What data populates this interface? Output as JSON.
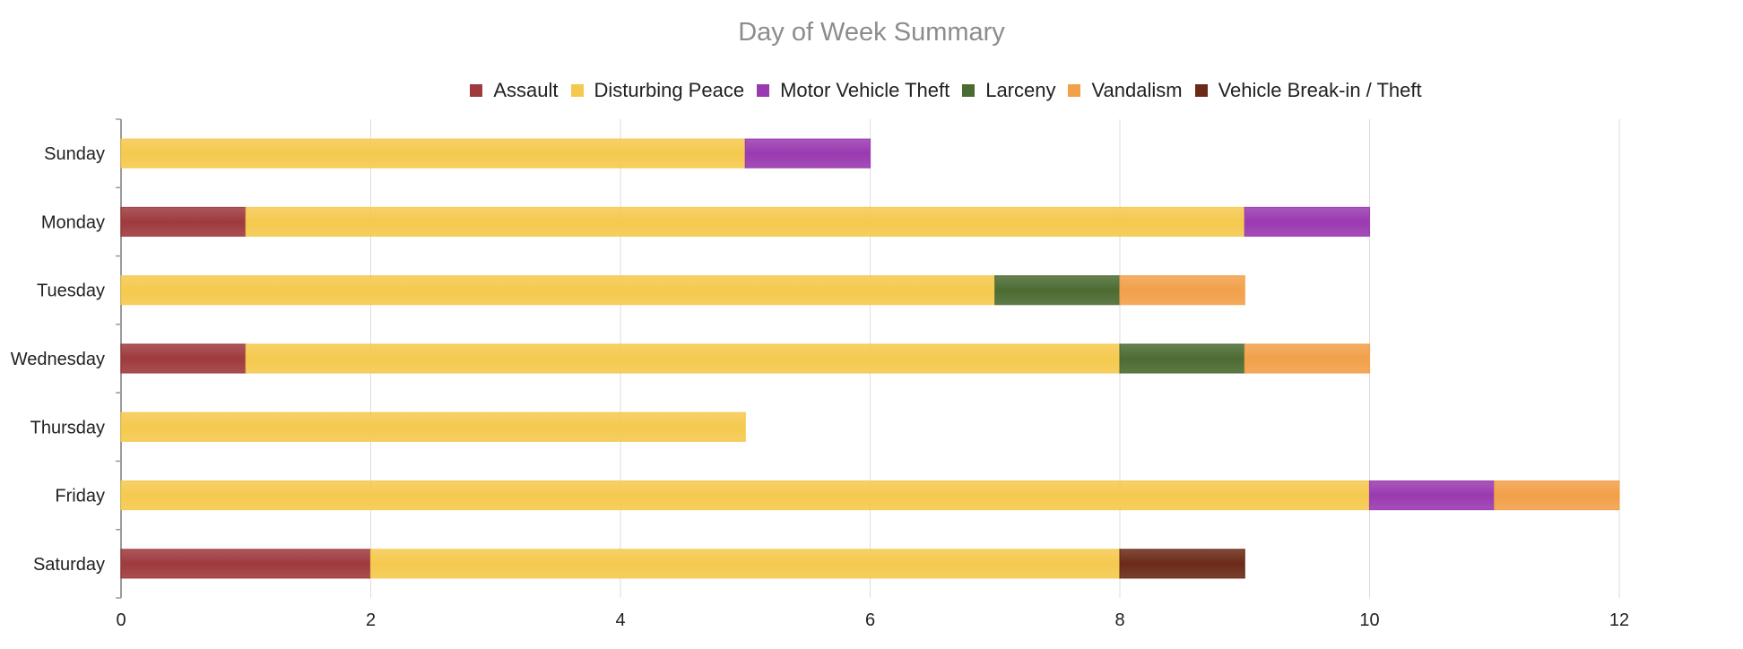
{
  "chart_data": {
    "type": "bar",
    "orientation": "horizontal",
    "stacked": true,
    "title": "Day of Week Summary",
    "categories": [
      "Sunday",
      "Monday",
      "Tuesday",
      "Wednesday",
      "Thursday",
      "Friday",
      "Saturday"
    ],
    "series": [
      {
        "name": "Assault",
        "color": "#9e3a3e",
        "values": [
          0,
          1,
          0,
          1,
          0,
          0,
          2
        ]
      },
      {
        "name": "Disturbing Peace",
        "color": "#f5c94e",
        "values": [
          5,
          8,
          7,
          7,
          5,
          10,
          6
        ]
      },
      {
        "name": "Motor Vehicle Theft",
        "color": "#9a3ab0",
        "values": [
          1,
          1,
          0,
          0,
          0,
          1,
          0
        ]
      },
      {
        "name": "Larceny",
        "color": "#4c6b32",
        "values": [
          0,
          0,
          1,
          1,
          0,
          0,
          0
        ]
      },
      {
        "name": "Vandalism",
        "color": "#f2a04a",
        "values": [
          0,
          0,
          1,
          1,
          0,
          1,
          0
        ]
      },
      {
        "name": "Vehicle Break-in / Theft",
        "color": "#6b2a17",
        "values": [
          0,
          0,
          0,
          0,
          0,
          0,
          1
        ]
      }
    ],
    "xlim": [
      0,
      12
    ],
    "xticks": [
      0,
      2,
      4,
      6,
      8,
      10,
      12
    ],
    "grid": true,
    "legend_position": "top"
  }
}
